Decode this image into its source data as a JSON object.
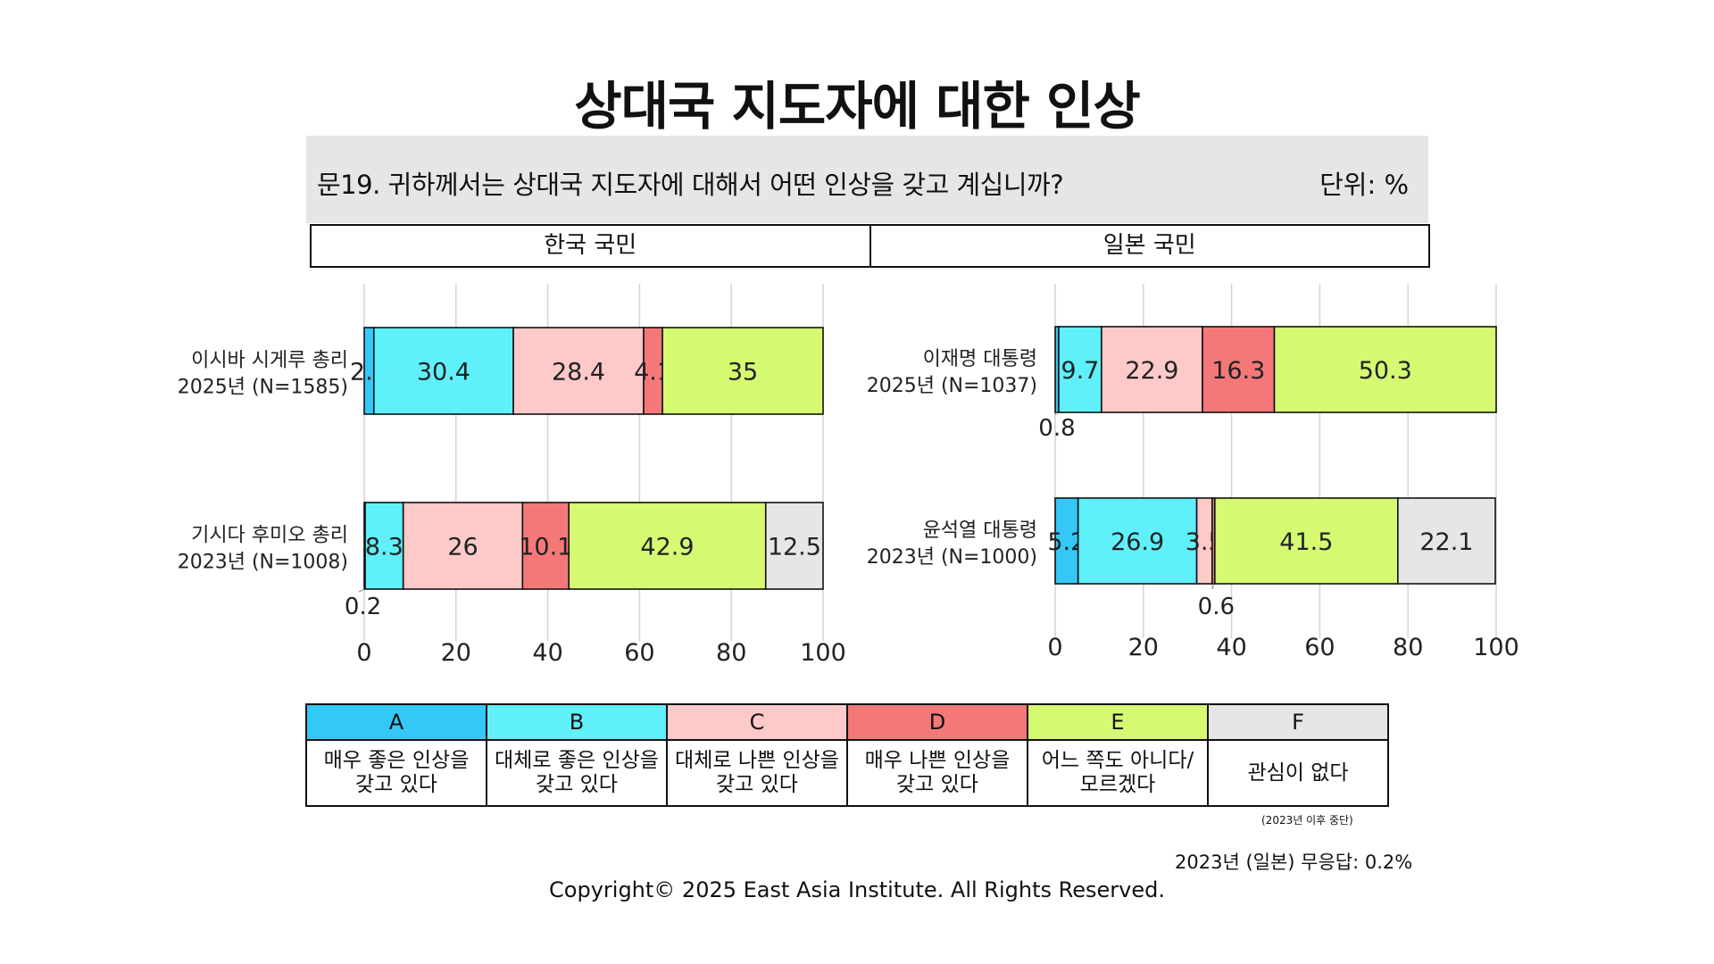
{
  "title": "상대국 지도자에 대한 인상",
  "question": "문19. 귀하께서는 상대국 지도자에 대해서 어떤 인상을 갖고 계십니까?",
  "unit": "단위: %",
  "groups": [
    "한국 국민",
    "일본 국민"
  ],
  "chart_data": [
    {
      "type": "bar",
      "orientation": "horizontal",
      "stacked": true,
      "panel": "한국 국민",
      "categories": [
        "이시바 시게루 총리\n2025년 (N=1585)",
        "기시다 후미오 총리\n2023년 (N=1008)"
      ],
      "series": [
        {
          "name": "A",
          "values": [
            2.1,
            0.2
          ]
        },
        {
          "name": "B",
          "values": [
            30.4,
            8.3
          ]
        },
        {
          "name": "C",
          "values": [
            28.4,
            26.0
          ]
        },
        {
          "name": "D",
          "values": [
            4.1,
            10.1
          ]
        },
        {
          "name": "E",
          "values": [
            35,
            42.9
          ]
        },
        {
          "name": "F",
          "values": [
            null,
            12.5
          ]
        }
      ],
      "xlim": [
        0,
        100
      ],
      "xticks": [
        "0",
        "20",
        "40",
        "60",
        "80",
        "100"
      ],
      "grid": true
    },
    {
      "type": "bar",
      "orientation": "horizontal",
      "stacked": true,
      "panel": "일본 국민",
      "categories": [
        "이재명 대통령\n2025년 (N=1037)",
        "윤석열 대통령\n2023년 (N=1000)"
      ],
      "series": [
        {
          "name": "A",
          "values": [
            0.8,
            5.2
          ]
        },
        {
          "name": "B",
          "values": [
            9.7,
            26.9
          ]
        },
        {
          "name": "C",
          "values": [
            22.9,
            3.5
          ]
        },
        {
          "name": "D",
          "values": [
            16.3,
            0.6
          ]
        },
        {
          "name": "E",
          "values": [
            50.3,
            41.5
          ]
        },
        {
          "name": "F",
          "values": [
            null,
            22.1
          ]
        }
      ],
      "xlim": [
        0,
        100
      ],
      "xticks": [
        "0",
        "20",
        "40",
        "60",
        "80",
        "100"
      ],
      "grid": true
    }
  ],
  "series_colors": {
    "A": "#33c8f5",
    "B": "#5ff0fa",
    "C": "#fdc9c9",
    "D": "#f57878",
    "E": "#d5fa72",
    "F": "#e6e6e6"
  },
  "legend": [
    {
      "key": "A",
      "desc": "매우 좋은 인상을\n갖고 있다"
    },
    {
      "key": "B",
      "desc": "대체로 좋은 인상을\n갖고 있다"
    },
    {
      "key": "C",
      "desc": "대체로 나쁜 인상을\n갖고 있다"
    },
    {
      "key": "D",
      "desc": "매우 나쁜 인상을\n갖고 있다"
    },
    {
      "key": "E",
      "desc": "어느 쪽도 아니다/\n모르겠다"
    },
    {
      "key": "F",
      "desc": "관심이 없다"
    }
  ],
  "footnote_f": "(2023년 이후 중단)",
  "no_response_note": "2023년 (일본) 무응답: 0.2%",
  "copyright": "Copyright© 2025 East Asia Institute. All Rights Reserved."
}
